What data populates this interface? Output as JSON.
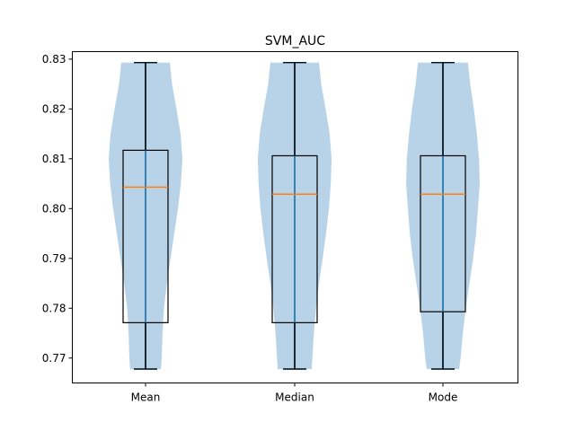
{
  "chart_data": {
    "type": "violin",
    "title": "SVM_AUC",
    "xlabel": "",
    "ylabel": "",
    "ylim": [
      0.765,
      0.8315
    ],
    "yticks": [
      0.77,
      0.78,
      0.79,
      0.8,
      0.81,
      0.82,
      0.83
    ],
    "ytick_labels": [
      "0.77",
      "0.78",
      "0.79",
      "0.80",
      "0.81",
      "0.82",
      "0.83"
    ],
    "categories": [
      "Mean",
      "Median",
      "Mode"
    ],
    "series": [
      {
        "name": "Mean",
        "min": 0.7678,
        "q1": 0.7771,
        "median": 0.8043,
        "q3": 0.8117,
        "max": 0.8293,
        "density": [
          [
            0.7678,
            0.42
          ],
          [
            0.77,
            0.44
          ],
          [
            0.775,
            0.46
          ],
          [
            0.78,
            0.5
          ],
          [
            0.785,
            0.58
          ],
          [
            0.79,
            0.68
          ],
          [
            0.795,
            0.78
          ],
          [
            0.8,
            0.88
          ],
          [
            0.805,
            0.96
          ],
          [
            0.81,
            1.0
          ],
          [
            0.815,
            0.95
          ],
          [
            0.82,
            0.84
          ],
          [
            0.825,
            0.72
          ],
          [
            0.8293,
            0.66
          ]
        ]
      },
      {
        "name": "Median",
        "min": 0.7678,
        "q1": 0.7771,
        "median": 0.8029,
        "q3": 0.8106,
        "max": 0.8293,
        "density": [
          [
            0.7678,
            0.46
          ],
          [
            0.77,
            0.48
          ],
          [
            0.775,
            0.52
          ],
          [
            0.78,
            0.58
          ],
          [
            0.785,
            0.66
          ],
          [
            0.79,
            0.76
          ],
          [
            0.795,
            0.85
          ],
          [
            0.8,
            0.93
          ],
          [
            0.805,
            0.98
          ],
          [
            0.81,
            1.0
          ],
          [
            0.815,
            0.95
          ],
          [
            0.82,
            0.84
          ],
          [
            0.825,
            0.72
          ],
          [
            0.8293,
            0.66
          ]
        ]
      },
      {
        "name": "Mode",
        "min": 0.7678,
        "q1": 0.7793,
        "median": 0.8029,
        "q3": 0.8106,
        "max": 0.8293,
        "density": [
          [
            0.7678,
            0.44
          ],
          [
            0.77,
            0.48
          ],
          [
            0.775,
            0.54
          ],
          [
            0.78,
            0.62
          ],
          [
            0.785,
            0.72
          ],
          [
            0.79,
            0.82
          ],
          [
            0.795,
            0.9
          ],
          [
            0.8,
            0.95
          ],
          [
            0.805,
            1.0
          ],
          [
            0.81,
            0.98
          ],
          [
            0.815,
            0.92
          ],
          [
            0.82,
            0.84
          ],
          [
            0.825,
            0.74
          ],
          [
            0.8293,
            0.68
          ]
        ]
      }
    ],
    "colors": {
      "violin_fill": "#b8d3e8",
      "whisker": "#1f77b4",
      "median": "#ff7f0e",
      "box": "#000000",
      "axes": "#000000"
    }
  }
}
